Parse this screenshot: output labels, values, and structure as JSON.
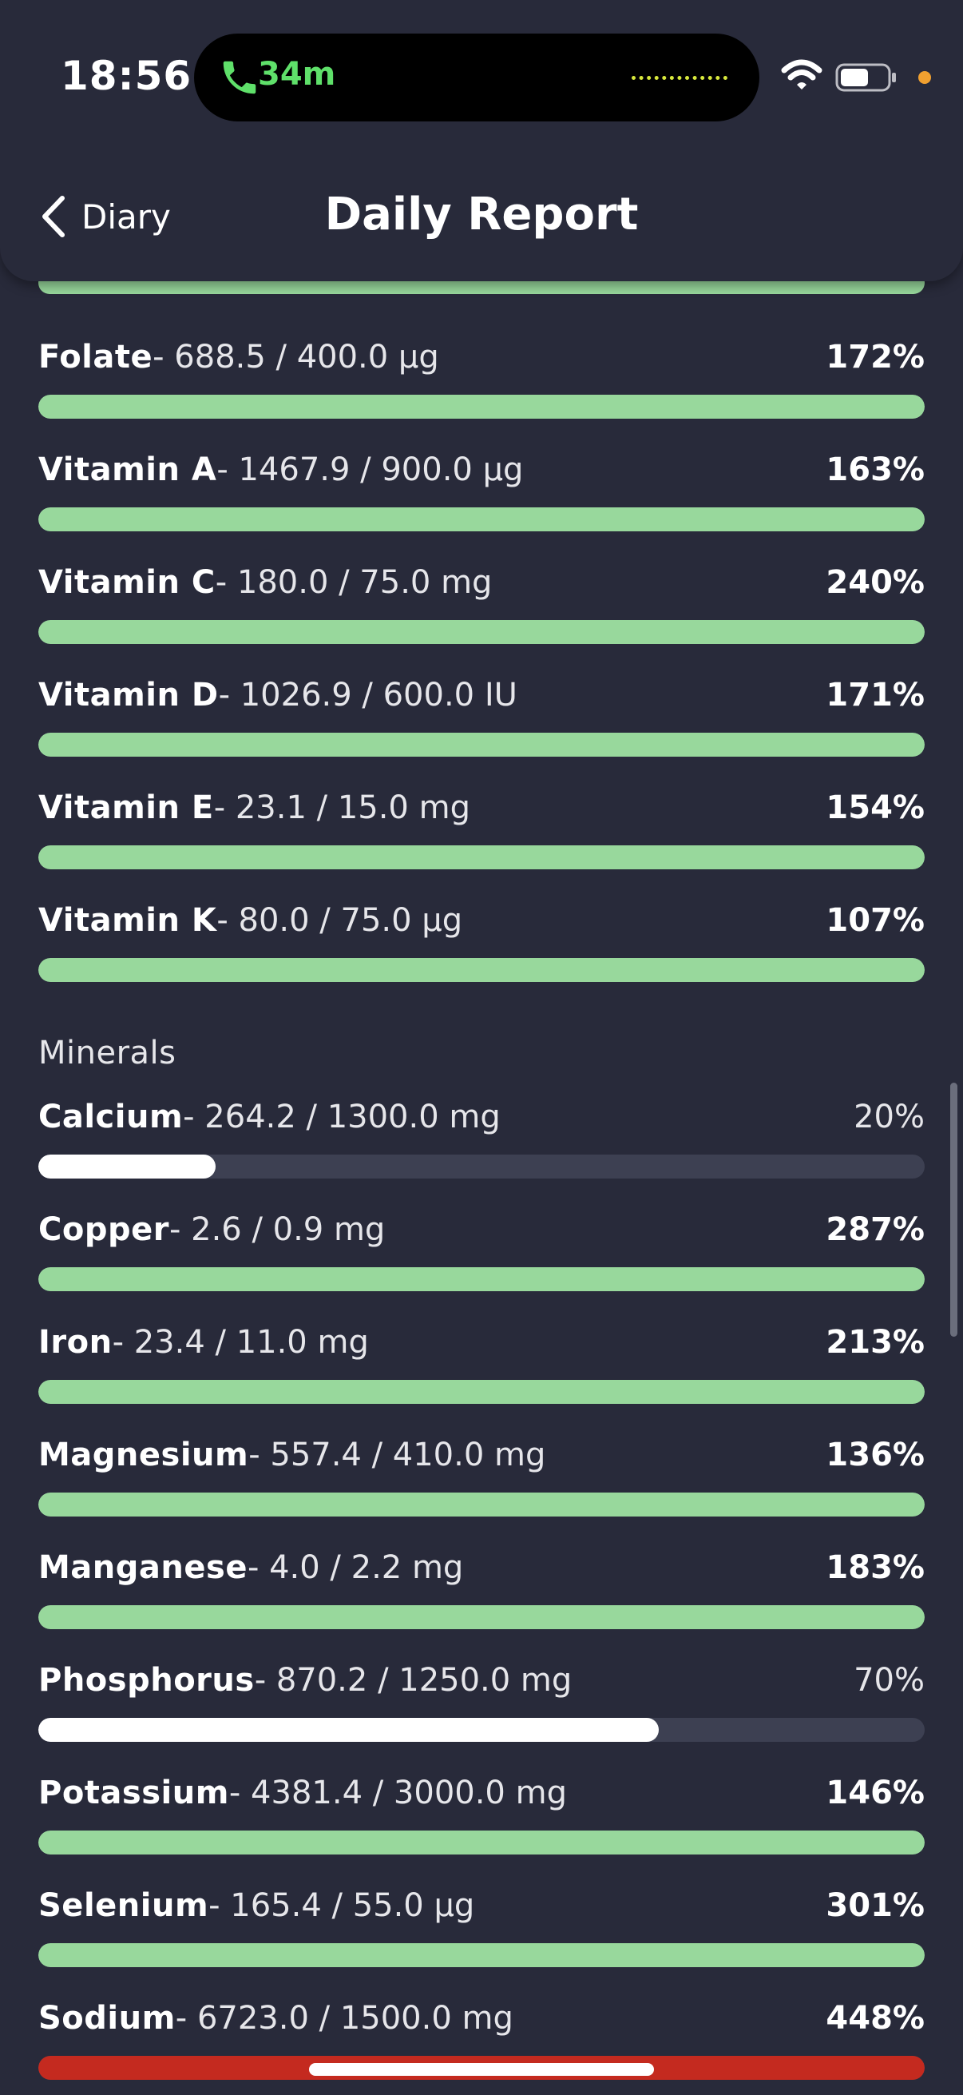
{
  "status_bar": {
    "time": "18:56",
    "call_duration": "34m"
  },
  "nav": {
    "back_label": "Diary",
    "title": "Daily Report"
  },
  "vitamins": [
    {
      "name": "Folate",
      "amount": "- 688.5 / 400.0 µg",
      "percent_label": "172%",
      "percent": 172
    },
    {
      "name": "Vitamin A",
      "amount": "- 1467.9 / 900.0 µg",
      "percent_label": "163%",
      "percent": 163
    },
    {
      "name": "Vitamin C",
      "amount": "- 180.0 / 75.0 mg",
      "percent_label": "240%",
      "percent": 240
    },
    {
      "name": "Vitamin D",
      "amount": "- 1026.9 / 600.0 IU",
      "percent_label": "171%",
      "percent": 171
    },
    {
      "name": "Vitamin E",
      "amount": "- 23.1 / 15.0 mg",
      "percent_label": "154%",
      "percent": 154
    },
    {
      "name": "Vitamin K",
      "amount": "- 80.0 / 75.0 µg",
      "percent_label": "107%",
      "percent": 107
    }
  ],
  "minerals_header": "Minerals",
  "minerals": [
    {
      "name": "Calcium",
      "amount": "- 264.2 / 1300.0 mg",
      "percent_label": "20%",
      "percent": 20
    },
    {
      "name": "Copper",
      "amount": "- 2.6 / 0.9 mg",
      "percent_label": "287%",
      "percent": 287
    },
    {
      "name": "Iron",
      "amount": "- 23.4 / 11.0 mg",
      "percent_label": "213%",
      "percent": 213
    },
    {
      "name": "Magnesium",
      "amount": "- 557.4 / 410.0 mg",
      "percent_label": "136%",
      "percent": 136
    },
    {
      "name": "Manganese",
      "amount": "- 4.0 / 2.2 mg",
      "percent_label": "183%",
      "percent": 183
    },
    {
      "name": "Phosphorus",
      "amount": "- 870.2 / 1250.0 mg",
      "percent_label": "70%",
      "percent": 70
    },
    {
      "name": "Potassium",
      "amount": "- 4381.4 / 3000.0 mg",
      "percent_label": "146%",
      "percent": 146
    },
    {
      "name": "Selenium",
      "amount": "- 165.4 / 55.0 µg",
      "percent_label": "301%",
      "percent": 301
    },
    {
      "name": "Sodium",
      "amount": "- 6723.0 / 1500.0 mg",
      "percent_label": "448%",
      "percent": 448,
      "over_limit": true
    }
  ],
  "colors": {
    "met": "#98d89c",
    "under": "#ffffff",
    "over_limit": "#c42a1f",
    "track": "#3d4052",
    "background": "#282a3a"
  }
}
